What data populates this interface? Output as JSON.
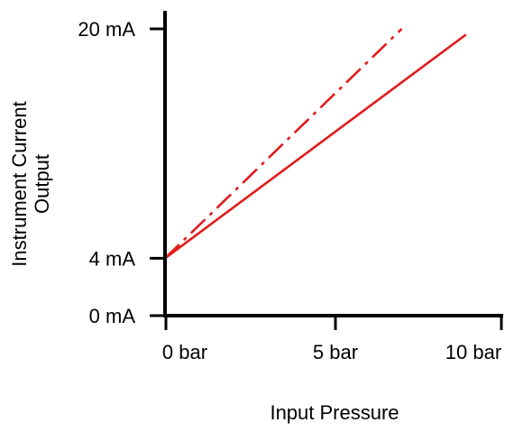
{
  "chart_data": {
    "type": "line",
    "xlabel": "Input Pressure",
    "ylabel_lines": [
      "Instrument Current",
      "Output"
    ],
    "x_ticks": [
      {
        "value": 0,
        "label": "0 bar"
      },
      {
        "value": 5,
        "label": "5 bar"
      },
      {
        "value": 10,
        "label": "10 bar"
      }
    ],
    "y_ticks": [
      {
        "value": 0,
        "label": "0 mA"
      },
      {
        "value": 4,
        "label": "4 mA"
      },
      {
        "value": 20,
        "label": "20 mA"
      }
    ],
    "xlim": [
      0,
      10
    ],
    "ylim": [
      0,
      20
    ],
    "grid": false,
    "series": [
      {
        "style": "solid",
        "color": "#e11b1b",
        "x": [
          0,
          8.9
        ],
        "y": [
          4,
          19.6
        ]
      },
      {
        "style": "dash-dot",
        "color": "#e11b1b",
        "x": [
          0,
          7.0
        ],
        "y": [
          4,
          20.0
        ]
      }
    ]
  }
}
